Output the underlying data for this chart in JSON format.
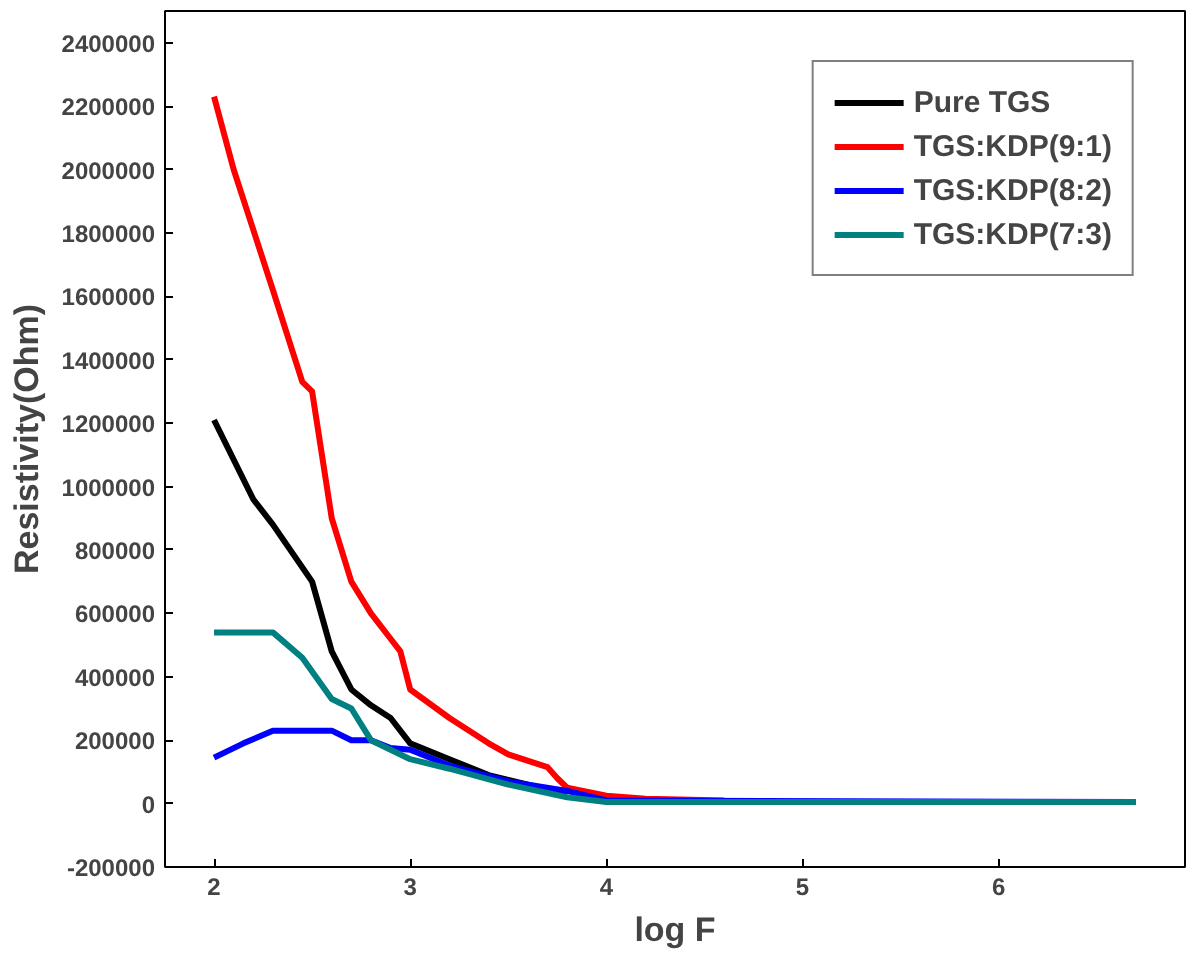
{
  "chart_data": {
    "type": "line",
    "xlabel": "log F",
    "ylabel": "Resistivity(Ohm)",
    "xlim": [
      1.75,
      6.95
    ],
    "ylim": [
      -200000,
      2500000
    ],
    "xticks": [
      2,
      3,
      4,
      5,
      6
    ],
    "yticks": [
      -200000,
      0,
      200000,
      400000,
      600000,
      800000,
      1000000,
      1200000,
      1400000,
      1600000,
      1800000,
      2000000,
      2200000,
      2400000
    ],
    "legend": "top right",
    "grid": false,
    "series": [
      {
        "name": "Pure TGS",
        "color": "#000000",
        "x": [
          2,
          2.2,
          2.3,
          2.5,
          2.6,
          2.7,
          2.8,
          2.9,
          3.0,
          3.2,
          3.4,
          3.6,
          3.8
        ],
        "values": [
          1210000,
          960000,
          880000,
          700000,
          480000,
          360000,
          310000,
          270000,
          190000,
          140000,
          90000,
          60000,
          30000
        ]
      },
      {
        "name": "TGS:KDP(9:1)",
        "color": "#ff0000",
        "x": [
          2,
          2.1,
          2.3,
          2.45,
          2.5,
          2.6,
          2.7,
          2.8,
          2.9,
          2.95,
          3.0,
          3.2,
          3.4,
          3.5,
          3.7,
          3.75,
          3.8,
          4.0,
          4.2,
          4.6
        ],
        "values": [
          2230000,
          2000000,
          1620000,
          1330000,
          1300000,
          900000,
          700000,
          600000,
          520000,
          480000,
          360000,
          270000,
          190000,
          155000,
          115000,
          80000,
          50000,
          25000,
          15000,
          10000
        ]
      },
      {
        "name": "TGS:KDP(8:2)",
        "color": "#0000ff",
        "x": [
          2,
          2.15,
          2.3,
          2.6,
          2.7,
          2.8,
          2.9,
          3.0,
          3.2,
          3.5,
          3.8,
          4.0,
          6.7
        ],
        "values": [
          145000,
          190000,
          230000,
          230000,
          200000,
          200000,
          175000,
          170000,
          120000,
          70000,
          40000,
          10000,
          5000
        ]
      },
      {
        "name": "TGS:KDP(7:3)",
        "color": "#008080",
        "x": [
          2,
          2.3,
          2.45,
          2.6,
          2.7,
          2.8,
          3.0,
          3.2,
          3.5,
          3.8,
          4.0,
          6.7
        ],
        "values": [
          540000,
          540000,
          460000,
          330000,
          300000,
          200000,
          140000,
          110000,
          60000,
          20000,
          5000,
          5000
        ]
      }
    ]
  }
}
